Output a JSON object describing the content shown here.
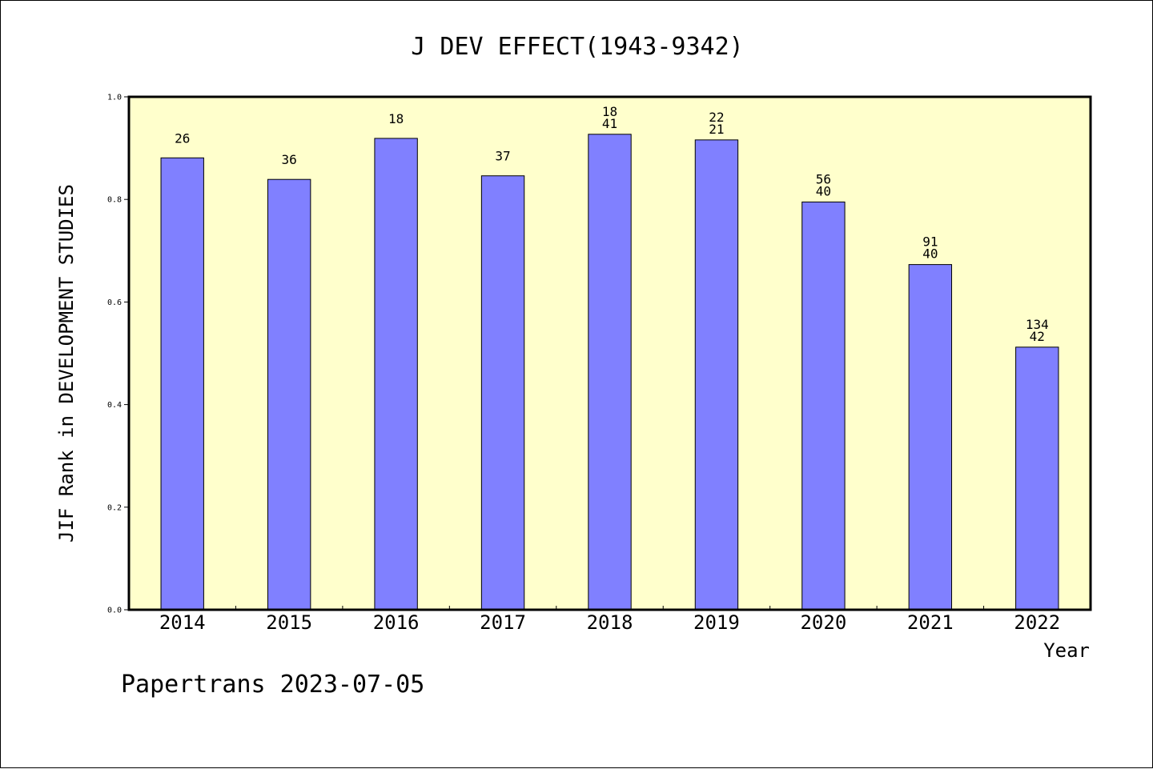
{
  "chart_data": {
    "type": "bar",
    "title": "J DEV EFFECT(1943-9342)",
    "xlabel": "Year",
    "ylabel": "JIF Rank in DEVELOPMENT STUDIES",
    "ylim": [
      0,
      1.0
    ],
    "yticks": [
      "0.0",
      "0.2",
      "0.4",
      "0.6",
      "0.8",
      "1.0"
    ],
    "categories": [
      "2014",
      "2015",
      "2016",
      "2017",
      "2018",
      "2019",
      "2020",
      "2021",
      "2022"
    ],
    "values": [
      0.881,
      0.839,
      0.919,
      0.846,
      0.927,
      0.916,
      0.795,
      0.673,
      0.512
    ],
    "bar_labels": [
      [
        "26"
      ],
      [
        "36"
      ],
      [
        "18"
      ],
      [
        "37"
      ],
      [
        "18",
        "41"
      ],
      [
        "22",
        "21"
      ],
      [
        "56",
        "40"
      ],
      [
        "91",
        "40"
      ],
      [
        "134",
        "42"
      ]
    ],
    "grid": false,
    "legend": "none",
    "colors": {
      "bar": "#8080ff",
      "plot_background": "#ffffcc",
      "axis": "#000000"
    }
  },
  "footer": {
    "text": "Papertrans 2023-07-05"
  }
}
